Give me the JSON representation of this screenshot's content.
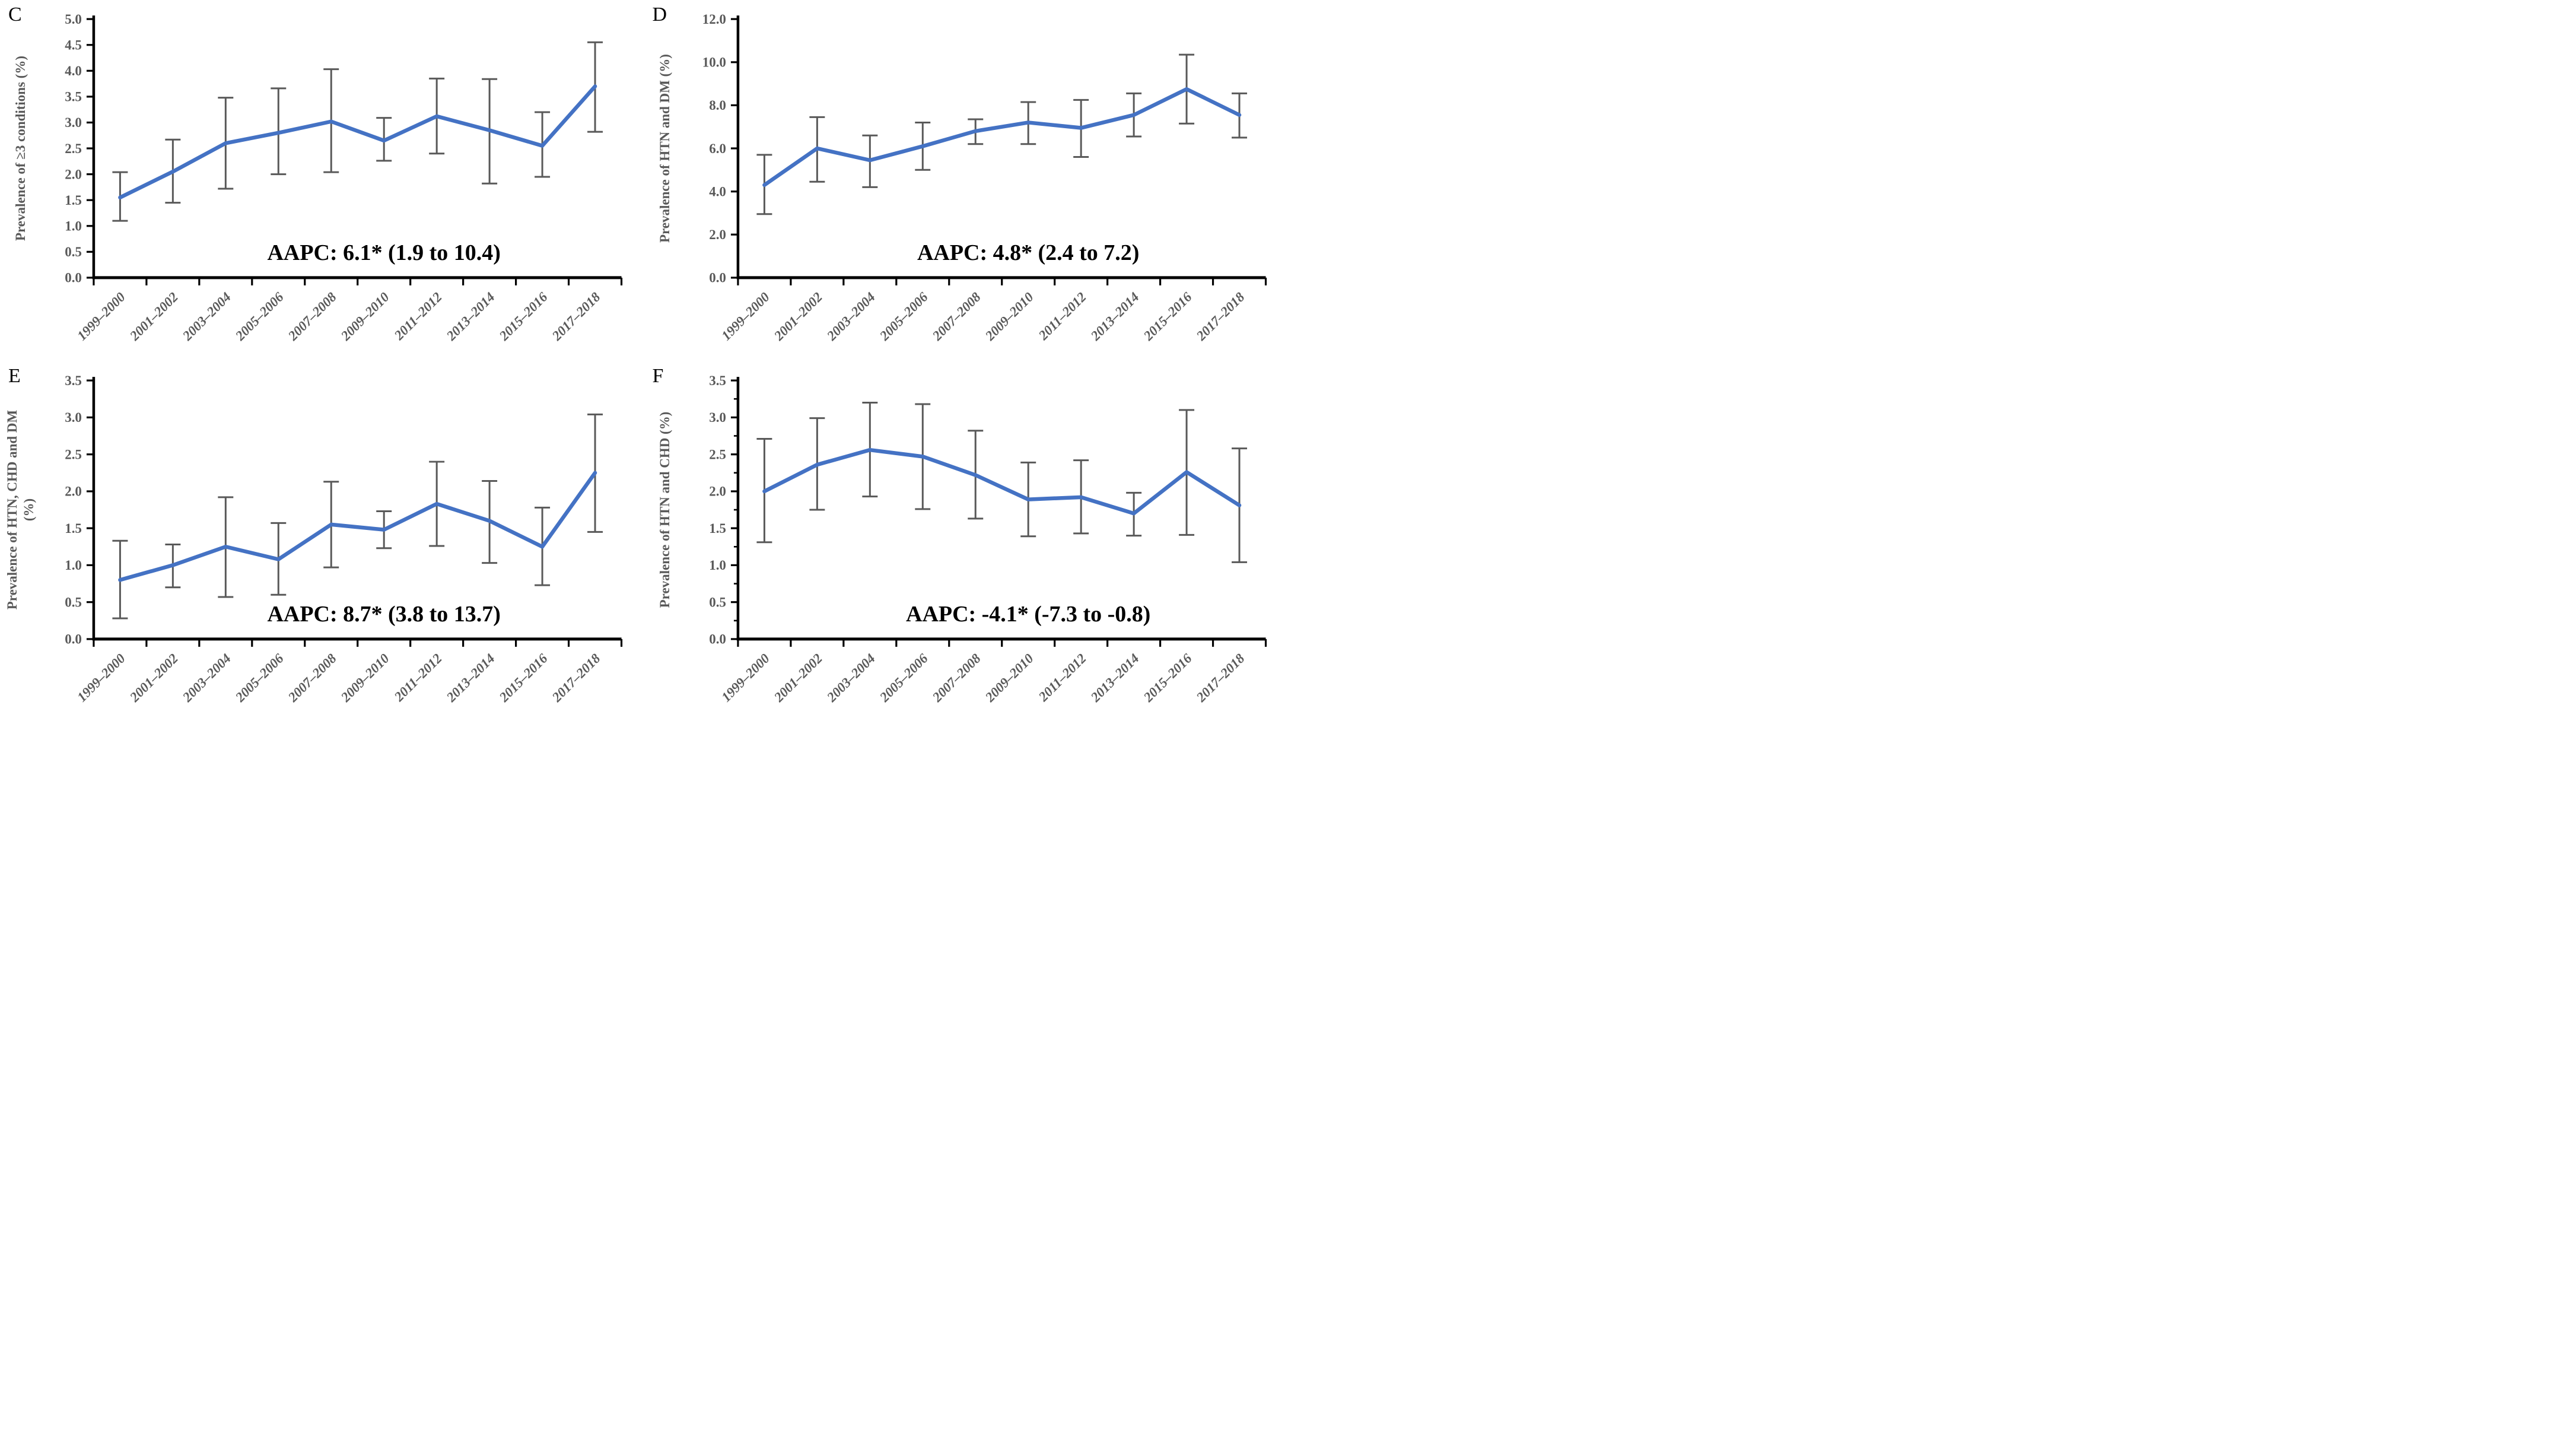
{
  "figure": {
    "background": "#ffffff",
    "colors": {
      "line": "#4472C4",
      "error_bar": "#595959",
      "axis": "#000000",
      "tick_label": "#595959",
      "axis_title": "#595959",
      "annotation": "#000000",
      "panel_letter": "#000000"
    }
  },
  "chart_data": [
    {
      "panel_label": "C",
      "type": "line",
      "title": "",
      "ylabel_lines": [
        "Prevalence of ≥3 conditions (%)"
      ],
      "xlabel": "",
      "ylim": [
        0.0,
        5.0
      ],
      "ytick_step": 0.5,
      "ytick_minor_step": null,
      "ytick_decimals": 1,
      "grid": false,
      "legend": "none",
      "categories": [
        "1999–2000",
        "2001–2002",
        "2003–2004",
        "2005–2006",
        "2007–2008",
        "2009–2010",
        "2011–2012",
        "2013–2014",
        "2015–2016",
        "2017–2018"
      ],
      "series": [
        {
          "name": "Prevalence of ≥3 conditions",
          "values": [
            1.55,
            2.05,
            2.6,
            2.8,
            3.02,
            2.65,
            3.12,
            2.85,
            2.55,
            3.7
          ],
          "ci_lower": [
            1.1,
            1.45,
            1.72,
            2.0,
            2.04,
            2.26,
            2.4,
            1.82,
            1.95,
            2.82
          ],
          "ci_upper": [
            2.04,
            2.67,
            3.48,
            3.66,
            4.03,
            3.09,
            3.85,
            3.84,
            3.2,
            4.55
          ]
        }
      ],
      "annotation": "AAPC: 6.1* (1.9 to 10.4)"
    },
    {
      "panel_label": "D",
      "type": "line",
      "title": "",
      "ylabel_lines": [
        "Prevalence of HTN and DM (%)"
      ],
      "xlabel": "",
      "ylim": [
        0.0,
        12.0
      ],
      "ytick_step": 2.0,
      "ytick_minor_step": null,
      "ytick_decimals": 1,
      "grid": false,
      "legend": "none",
      "categories": [
        "1999–2000",
        "2001–2002",
        "2003–2004",
        "2005–2006",
        "2007–2008",
        "2009–2010",
        "2011–2012",
        "2013–2014",
        "2015–2016",
        "2017–2018"
      ],
      "series": [
        {
          "name": "Prevalence of HTN and DM",
          "values": [
            4.3,
            6.0,
            5.45,
            6.1,
            6.8,
            7.2,
            6.95,
            7.55,
            8.75,
            7.55
          ],
          "ci_lower": [
            2.95,
            4.45,
            4.2,
            5.0,
            6.2,
            6.2,
            5.6,
            6.55,
            7.15,
            6.5
          ],
          "ci_upper": [
            5.7,
            7.45,
            6.6,
            7.2,
            7.35,
            8.15,
            8.25,
            8.55,
            10.35,
            8.55
          ]
        }
      ],
      "annotation": "AAPC: 4.8* (2.4 to 7.2)"
    },
    {
      "panel_label": "E",
      "type": "line",
      "title": "",
      "ylabel_lines": [
        "Prevalence of HTN, CHD and DM",
        "(%)"
      ],
      "xlabel": "",
      "ylim": [
        0.0,
        3.5
      ],
      "ytick_step": 0.5,
      "ytick_minor_step": null,
      "ytick_decimals": 1,
      "grid": false,
      "legend": "none",
      "categories": [
        "1999–2000",
        "2001–2002",
        "2003–2004",
        "2005–2006",
        "2007–2008",
        "2009–2010",
        "2011–2012",
        "2013–2014",
        "2015–2016",
        "2017–2018"
      ],
      "series": [
        {
          "name": "Prevalence of HTN, CHD and DM",
          "values": [
            0.8,
            1.0,
            1.25,
            1.08,
            1.55,
            1.48,
            1.83,
            1.6,
            1.25,
            2.25
          ],
          "ci_lower": [
            0.28,
            0.7,
            0.57,
            0.6,
            0.97,
            1.23,
            1.26,
            1.03,
            0.73,
            1.45
          ],
          "ci_upper": [
            1.33,
            1.28,
            1.92,
            1.57,
            2.13,
            1.73,
            2.4,
            2.14,
            1.78,
            3.04
          ]
        }
      ],
      "annotation": "AAPC: 8.7* (3.8 to 13.7)"
    },
    {
      "panel_label": "F",
      "type": "line",
      "title": "",
      "ylabel_lines": [
        "Prevalence of HTN and CHD (%)"
      ],
      "xlabel": "",
      "ylim": [
        0.0,
        3.5
      ],
      "ytick_step": 0.5,
      "ytick_minor_step": 0.25,
      "ytick_decimals": 1,
      "grid": false,
      "legend": "none",
      "categories": [
        "1999–2000",
        "2001–2002",
        "2003–2004",
        "2005–2006",
        "2007–2008",
        "2009–2010",
        "2011–2012",
        "2013–2014",
        "2015–2016",
        "2017–2018"
      ],
      "series": [
        {
          "name": "Prevalence of HTN and CHD",
          "values": [
            2.0,
            2.36,
            2.56,
            2.47,
            2.22,
            1.89,
            1.92,
            1.7,
            2.26,
            1.81
          ],
          "ci_lower": [
            1.31,
            1.75,
            1.93,
            1.76,
            1.63,
            1.39,
            1.43,
            1.4,
            1.41,
            1.04
          ],
          "ci_upper": [
            2.71,
            2.99,
            3.2,
            3.18,
            2.82,
            2.39,
            2.42,
            1.98,
            3.1,
            2.58
          ]
        }
      ],
      "annotation": "AAPC: -4.1* (-7.3 to -0.8)"
    }
  ]
}
